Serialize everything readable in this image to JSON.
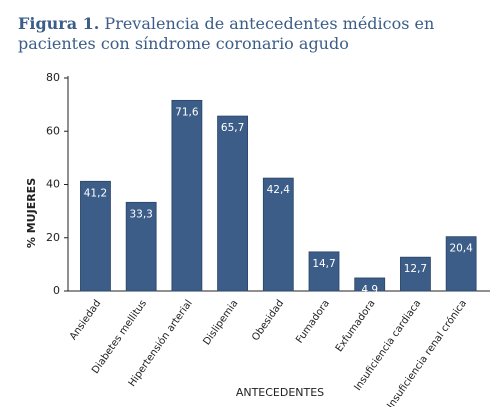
{
  "chart_data": {
    "type": "bar",
    "title_prefix": "Figura 1.",
    "title": "Prevalencia de antecedentes médicos en pacientes con síndrome coronario agudo",
    "y_label": "% MUJERES",
    "x_label": "ANTECEDENTES",
    "categories": [
      "Ansiedad",
      "Diabetes mellitus",
      "Hipertensión arterial",
      "Dislipemia",
      "Obesidad",
      "Fumadora",
      "Exfumadora",
      "Insuficiencia cardiaca",
      "Insuficiencia renal crónica"
    ],
    "values": [
      41.2,
      33.3,
      71.6,
      65.7,
      42.4,
      14.7,
      4.9,
      12.7,
      20.4
    ],
    "value_labels": [
      "41,2",
      "33,3",
      "71,6",
      "65,7",
      "42,4",
      "14,7",
      "4,9",
      "12,7",
      "20,4"
    ],
    "color": "#3b5d88",
    "ylim": [
      0,
      80
    ],
    "yticks": [
      0,
      20,
      40,
      60,
      80
    ],
    "grid": false
  }
}
